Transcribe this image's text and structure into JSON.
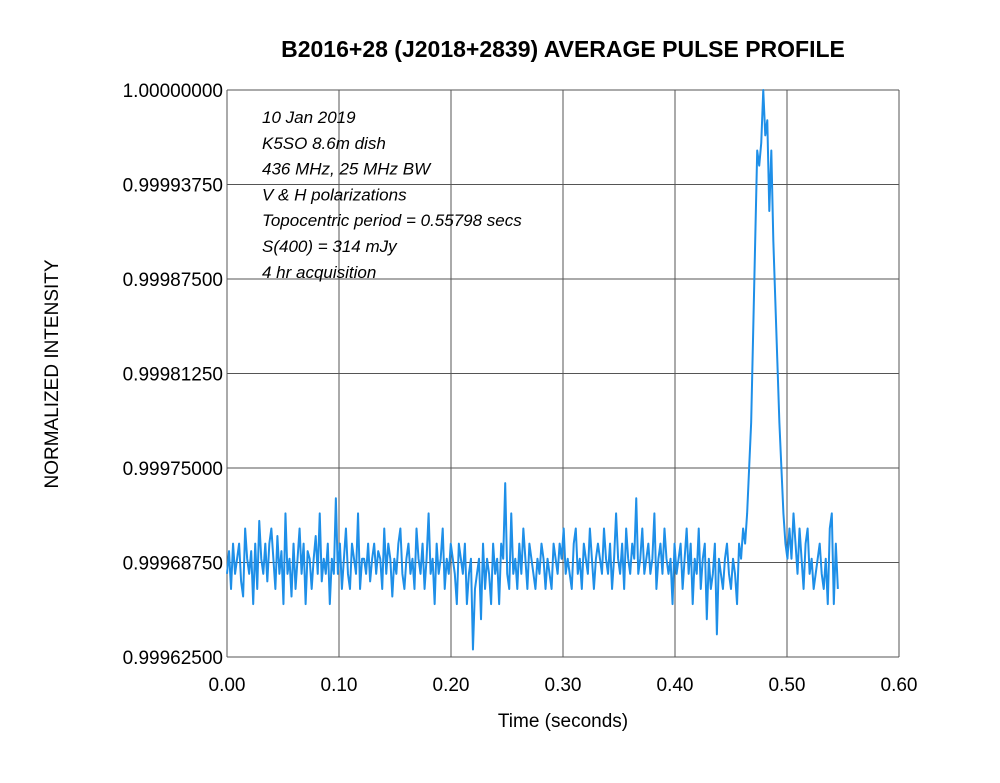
{
  "chart_data": {
    "type": "line",
    "title": "B2016+28 (J2018+2839) AVERAGE PULSE PROFILE",
    "xlabel": "Time (seconds)",
    "ylabel": "NORMALIZED INTENSITY",
    "xlim": [
      0,
      0.6
    ],
    "ylim": [
      0.999625,
      1.0
    ],
    "x_ticks": [
      "0.00",
      "0.10",
      "0.20",
      "0.30",
      "0.40",
      "0.50",
      "0.60"
    ],
    "y_ticks": [
      "0.99962500",
      "0.99968750",
      "0.99975000",
      "0.99981250",
      "0.99987500",
      "0.99993750",
      "1.00000000"
    ],
    "grid": true,
    "color": "#1E8FE8",
    "annotations": [
      "10 Jan 2019",
      "K5SO 8.6m dish",
      "436 MHz, 25 MHz BW",
      "V & H polarizations",
      "Topocentric period = 0.55798 secs",
      "S(400) = 314 mJy",
      "4 hr acquisition"
    ],
    "series": [
      {
        "x_start": 0.0,
        "x_step": 0.0018,
        "values": [
          0.99968,
          0.999695,
          0.99967,
          0.9997,
          0.99968,
          0.99969,
          0.9997,
          0.999675,
          0.999665,
          0.99971,
          0.99969,
          0.99968,
          0.999695,
          0.99966,
          0.9997,
          0.99967,
          0.999715,
          0.99969,
          0.99968,
          0.9997,
          0.999675,
          0.9997,
          0.99971,
          0.99969,
          0.99967,
          0.999705,
          0.99968,
          0.999695,
          0.99966,
          0.99972,
          0.99968,
          0.99969,
          0.999665,
          0.9997,
          0.99967,
          0.99969,
          0.99971,
          0.99968,
          0.9997,
          0.99966,
          0.999695,
          0.99969,
          0.99967,
          0.99969,
          0.999705,
          0.99968,
          0.99972,
          0.999675,
          0.99969,
          0.99968,
          0.9997,
          0.99966,
          0.99969,
          0.99968,
          0.99973,
          0.99968,
          0.9997,
          0.99967,
          0.99969,
          0.99971,
          0.99968,
          0.99967,
          0.9997,
          0.99969,
          0.99968,
          0.99972,
          0.99967,
          0.99969,
          0.99969,
          0.99968,
          0.9997,
          0.999675,
          0.99969,
          0.9997,
          0.99968,
          0.999695,
          0.99969,
          0.99967,
          0.99971,
          0.99968,
          0.9997,
          0.99969,
          0.999665,
          0.99969,
          0.99968,
          0.9997,
          0.99971,
          0.99968,
          0.99967,
          0.99969,
          0.9997,
          0.99968,
          0.99969,
          0.99967,
          0.99971,
          0.99969,
          0.99968,
          0.9997,
          0.99967,
          0.99969,
          0.99972,
          0.99968,
          0.99969,
          0.99966,
          0.9997,
          0.99968,
          0.99969,
          0.99971,
          0.99967,
          0.99969,
          0.99968,
          0.9997,
          0.99969,
          0.99968,
          0.99966,
          0.9997,
          0.99969,
          0.99968,
          0.9997,
          0.99966,
          0.99968,
          0.99969,
          0.99963,
          0.99967,
          0.99968,
          0.99969,
          0.99965,
          0.9997,
          0.99967,
          0.99969,
          0.99968,
          0.99966,
          0.9997,
          0.99968,
          0.99969,
          0.99966,
          0.9997,
          0.99969,
          0.99974,
          0.99968,
          0.99967,
          0.99972,
          0.99968,
          0.99969,
          0.99967,
          0.9997,
          0.99968,
          0.99971,
          0.99969,
          0.99967,
          0.9997,
          0.99969,
          0.99968,
          0.99967,
          0.99969,
          0.99968,
          0.9997,
          0.99969,
          0.99967,
          0.99969,
          0.99968,
          0.99967,
          0.9997,
          0.99969,
          0.99968,
          0.9997,
          0.99969,
          0.99971,
          0.99968,
          0.99969,
          0.99968,
          0.99967,
          0.9997,
          0.99971,
          0.99968,
          0.99969,
          0.99967,
          0.9997,
          0.99969,
          0.99968,
          0.99971,
          0.99969,
          0.99967,
          0.99969,
          0.9997,
          0.99969,
          0.99968,
          0.99971,
          0.99969,
          0.99968,
          0.9997,
          0.99967,
          0.99969,
          0.99972,
          0.99969,
          0.99968,
          0.9997,
          0.99967,
          0.99971,
          0.99969,
          0.99968,
          0.9997,
          0.99969,
          0.99973,
          0.99968,
          0.99969,
          0.99971,
          0.99968,
          0.99969,
          0.9997,
          0.99968,
          0.99969,
          0.99972,
          0.99967,
          0.99969,
          0.9997,
          0.99968,
          0.99971,
          0.99969,
          0.99968,
          0.99969,
          0.99966,
          0.9997,
          0.99968,
          0.99969,
          0.9997,
          0.99967,
          0.99969,
          0.99971,
          0.99968,
          0.9997,
          0.99966,
          0.99969,
          0.99968,
          0.99971,
          0.99967,
          0.99969,
          0.9997,
          0.99965,
          0.99969,
          0.99967,
          0.99968,
          0.9997,
          0.99964,
          0.99969,
          0.99968,
          0.99967,
          0.99969,
          0.9997,
          0.99968,
          0.99967,
          0.99969,
          0.99968,
          0.99966,
          0.9997,
          0.99969,
          0.99971,
          0.9997,
          0.99972,
          0.99975,
          0.99978,
          0.99984,
          0.9999,
          0.99996,
          0.99995,
          0.999965,
          1.0,
          0.99997,
          0.99998,
          0.99992,
          0.99996,
          0.9999,
          0.99986,
          0.99982,
          0.99978,
          0.99975,
          0.99972,
          0.9997,
          0.99969,
          0.99971,
          0.99969,
          0.99972,
          0.9997,
          0.99968,
          0.99971,
          0.99969,
          0.99967,
          0.9997,
          0.99971,
          0.99968,
          0.99969,
          0.99967,
          0.99968,
          0.99969,
          0.9997,
          0.99968,
          0.99967,
          0.99969,
          0.99966,
          0.99971,
          0.99972,
          0.99966,
          0.9997,
          0.99967
        ]
      }
    ]
  }
}
